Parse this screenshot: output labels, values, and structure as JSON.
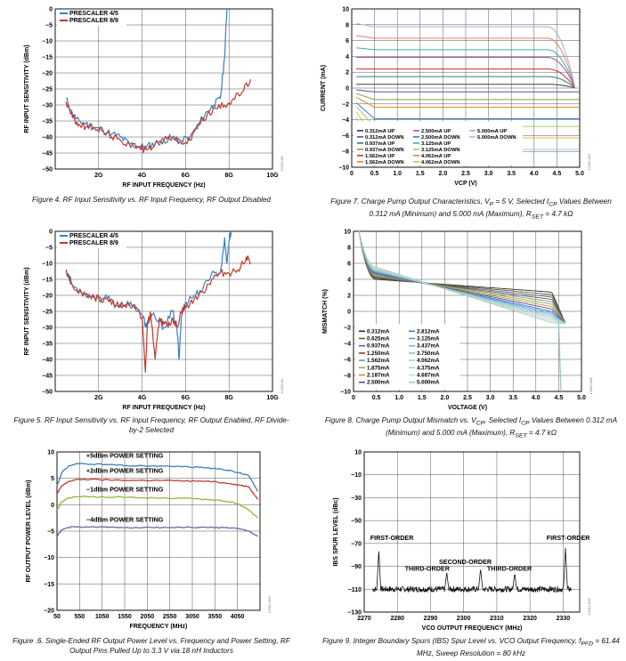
{
  "chart_data": [
    {
      "id": "fig4",
      "type": "line",
      "title": "",
      "caption": "Figure 4. RF Input Sensitivity vs. RF Input Frequency, RF Output Disabled",
      "xlabel": "RF INPUT FREQUENCY (Hz)",
      "ylabel": "RF INPUT SENSITIVITY (dBm)",
      "figure_id": "12282-08",
      "xlim": [
        0,
        10
      ],
      "ylim": [
        -50,
        0
      ],
      "x_ticks": [
        {
          "v": 2,
          "label": "2G"
        },
        {
          "v": 4,
          "label": "4G"
        },
        {
          "v": 6,
          "label": "6G"
        },
        {
          "v": 8,
          "label": "8G"
        },
        {
          "v": 10,
          "label": "10G"
        }
      ],
      "y_ticks": [
        -50,
        -45,
        -40,
        -35,
        -30,
        -25,
        -20,
        -15,
        -10,
        -5,
        0
      ],
      "grid": true,
      "legend": "top-left",
      "series": [
        {
          "name": "PRESCALER 4/5",
          "color": "#3a7fc1",
          "x": [
            0.5,
            0.8,
            1.1,
            1.4,
            1.8,
            2.2,
            2.6,
            3.0,
            3.4,
            3.8,
            4.2,
            4.6,
            5.0,
            5.4,
            5.8,
            6.2,
            6.6,
            7.0,
            7.3,
            7.6,
            7.8,
            7.9
          ],
          "y": [
            -28,
            -33,
            -35,
            -36,
            -37,
            -38,
            -39,
            -40,
            -42,
            -43,
            -43,
            -42,
            -41,
            -40,
            -41,
            -40,
            -36,
            -32,
            -30,
            -28,
            -15,
            0
          ]
        },
        {
          "name": "PRESCALER 8/9",
          "color": "#c0392b",
          "x": [
            0.5,
            0.8,
            1.1,
            1.4,
            1.8,
            2.2,
            2.6,
            3.0,
            3.4,
            3.8,
            4.2,
            4.6,
            5.0,
            5.4,
            5.8,
            6.2,
            6.6,
            7.0,
            7.4,
            7.8,
            8.2,
            8.6,
            9.0
          ],
          "y": [
            -29,
            -34,
            -36,
            -37,
            -37,
            -38,
            -40,
            -41,
            -42,
            -43,
            -44,
            -42,
            -41,
            -40,
            -42,
            -41,
            -36,
            -33,
            -31,
            -30,
            -28,
            -26,
            -22
          ]
        }
      ]
    },
    {
      "id": "fig5",
      "type": "line",
      "title": "",
      "caption": "Figure 5. RF Input Sensitivity vs. RF Input Frequency, RF Output Enabled, RF Divide-by-2 Selected",
      "xlabel": "RF INPUT FREQUENCY (Hz)",
      "ylabel": "RF INPUT SENSITIVITY (dBm)",
      "figure_id": "12282-00",
      "xlim": [
        0,
        10
      ],
      "ylim": [
        -50,
        0
      ],
      "x_ticks": [
        {
          "v": 2,
          "label": "2G"
        },
        {
          "v": 4,
          "label": "4G"
        },
        {
          "v": 6,
          "label": "6G"
        },
        {
          "v": 8,
          "label": "8G"
        },
        {
          "v": 10,
          "label": "10G"
        }
      ],
      "y_ticks": [
        -50,
        -45,
        -40,
        -35,
        -30,
        -25,
        -20,
        -15,
        -10,
        -5,
        0
      ],
      "grid": true,
      "legend": "top-left",
      "series": [
        {
          "name": "PRESCALER 4/5",
          "color": "#3a7fc1",
          "x": [
            0.5,
            0.8,
            1.2,
            1.6,
            2.0,
            2.4,
            2.8,
            3.2,
            3.6,
            4.0,
            4.2,
            4.4,
            4.6,
            5.0,
            5.4,
            5.6,
            5.7,
            5.8,
            6.0,
            6.4,
            6.8,
            7.2,
            7.6,
            7.8,
            7.9,
            8.0,
            8.1
          ],
          "y": [
            -12,
            -17,
            -19,
            -20,
            -21,
            -21,
            -23,
            -23,
            -23,
            -26,
            -30,
            -26,
            -27,
            -30,
            -25,
            -30,
            -40,
            -27,
            -22,
            -20,
            -18,
            -13,
            -13,
            -2,
            -10,
            -3,
            0
          ]
        },
        {
          "name": "PRESCALER 8/9",
          "color": "#c0392b",
          "x": [
            0.5,
            0.8,
            1.2,
            1.6,
            2.0,
            2.4,
            2.8,
            3.2,
            3.6,
            4.0,
            4.15,
            4.25,
            4.4,
            4.6,
            4.8,
            5.0,
            5.2,
            5.4,
            5.6,
            5.8,
            6.0,
            6.4,
            6.8,
            7.2,
            7.6,
            8.0,
            8.4,
            8.8,
            9.0
          ],
          "y": [
            -12,
            -17,
            -19,
            -20,
            -21,
            -21,
            -23,
            -23,
            -23,
            -27,
            -44,
            -28,
            -26,
            -40,
            -27,
            -29,
            -30,
            -27,
            -30,
            -25,
            -24,
            -21,
            -19,
            -15,
            -13,
            -13,
            -12,
            -8,
            -10
          ]
        }
      ]
    },
    {
      "id": "fig6",
      "type": "line",
      "title": "",
      "caption": "Figure .6. Single-Ended RF Output Power Level vs. Frequency and Power Setting, RF Output Pins Pulled Up to 3.3 V via 18 nH Inductors",
      "xlabel": "FREQUENCY (MHz)",
      "ylabel": "RF OUTPUT POWER LEVEL (dBm)",
      "figure_id": "12282-006",
      "xlim": [
        50,
        4550
      ],
      "ylim": [
        -20,
        10
      ],
      "x_ticks": [
        {
          "v": 50,
          "label": "50"
        },
        {
          "v": 550,
          "label": "550"
        },
        {
          "v": 1050,
          "label": "1050"
        },
        {
          "v": 1550,
          "label": "1550"
        },
        {
          "v": 2050,
          "label": "2050"
        },
        {
          "v": 2550,
          "label": "2550"
        },
        {
          "v": 3050,
          "label": "3050"
        },
        {
          "v": 3550,
          "label": "3550"
        },
        {
          "v": 4050,
          "label": "4050"
        }
      ],
      "y_ticks": [
        -20,
        -15,
        -10,
        -5,
        0,
        5,
        10
      ],
      "grid": true,
      "annotations": [
        "+5dBm POWER SETTING",
        "+2dBm POWER SETTING",
        "−1dBm POWER SETTING",
        "−4dBm POWER SETTING"
      ],
      "series": [
        {
          "name": "+5dBm POWER SETTING",
          "color": "#3a7fc1",
          "x": [
            50,
            150,
            300,
            500,
            800,
            1200,
            1600,
            2000,
            2400,
            2800,
            3200,
            3600,
            3900,
            4100,
            4300,
            4500
          ],
          "y": [
            3.5,
            6.0,
            7.3,
            7.8,
            7.7,
            7.6,
            7.4,
            7.3,
            7.3,
            7.2,
            7.1,
            6.8,
            6.5,
            6.0,
            5.5,
            2.5
          ]
        },
        {
          "name": "+2dBm POWER SETTING",
          "color": "#c0392b",
          "x": [
            50,
            150,
            300,
            500,
            800,
            1200,
            1600,
            2000,
            2400,
            2800,
            3200,
            3600,
            3900,
            4100,
            4300,
            4500
          ],
          "y": [
            2.0,
            3.5,
            4.4,
            4.8,
            4.8,
            4.7,
            4.6,
            4.6,
            4.6,
            4.5,
            4.5,
            4.3,
            4.0,
            3.7,
            3.4,
            1.0
          ]
        },
        {
          "name": "−1dBm POWER SETTING",
          "color": "#8db83f",
          "x": [
            50,
            150,
            300,
            500,
            800,
            1200,
            1600,
            2000,
            2400,
            2800,
            3200,
            3600,
            3900,
            4100,
            4300,
            4500
          ],
          "y": [
            -1.0,
            0.5,
            1.3,
            1.5,
            1.5,
            1.4,
            1.4,
            1.3,
            1.3,
            1.2,
            1.1,
            0.9,
            0.5,
            0.0,
            -1.0,
            -2.5
          ]
        },
        {
          "name": "−4dBm POWER SETTING",
          "color": "#7b5ea7",
          "x": [
            50,
            150,
            300,
            500,
            800,
            1200,
            1600,
            2000,
            2400,
            2800,
            3200,
            3600,
            3900,
            4100,
            4300,
            4500
          ],
          "y": [
            -6.0,
            -4.8,
            -4.3,
            -4.2,
            -4.2,
            -4.3,
            -4.3,
            -4.3,
            -4.3,
            -4.3,
            -4.3,
            -4.3,
            -4.4,
            -4.6,
            -5.0,
            -6.0
          ]
        }
      ]
    },
    {
      "id": "fig7",
      "type": "line",
      "title": "",
      "caption": "Figure 7. Charge Pump Output Characteristics, VP = 5 V, Selected ICP Values Between 0.312 mA (Minimum) and 5.000 mA (Maximum), RSET = 4.7 kΩ",
      "xlabel": "VCP (V)",
      "ylabel": "CURRENT (mA)",
      "figure_id": "12282-007",
      "xlim": [
        0,
        5
      ],
      "ylim": [
        -10,
        10
      ],
      "x_ticks": [
        {
          "v": 0,
          "label": "0"
        },
        {
          "v": 0.5,
          "label": "0.5"
        },
        {
          "v": 1,
          "label": "1.0"
        },
        {
          "v": 1.5,
          "label": "1.5"
        },
        {
          "v": 2,
          "label": "2.0"
        },
        {
          "v": 2.5,
          "label": "2.5"
        },
        {
          "v": 3,
          "label": "3.0"
        },
        {
          "v": 3.5,
          "label": "3.5"
        },
        {
          "v": 4,
          "label": "4.0"
        },
        {
          "v": 4.5,
          "label": "4.5"
        },
        {
          "v": 5,
          "label": "5.0"
        }
      ],
      "y_ticks": [
        -10,
        -8,
        -6,
        -4,
        -2,
        0,
        2,
        4,
        6,
        8,
        10
      ],
      "grid": true,
      "legend": "bottom-left",
      "currents": [
        0.312,
        0.937,
        1.562,
        2.5,
        3.125,
        4.062,
        5.0
      ],
      "legend_entries": [
        "0.312mA UP",
        "0.312mA DOWN",
        "0.937mA UP",
        "0.937mA DOWN",
        "1.562mA UP",
        "1.562mA DOWN",
        "2.500mA UP",
        "2.500mA DOWN",
        "3.125mA UP",
        "3.125mA DOWN",
        "4.062mA UP",
        "4.062mA DOWN",
        "5.000mA UP",
        "5.000mA DOWN"
      ],
      "legend_colors": [
        "#3d3d3d",
        "#5b4fa0",
        "#2f7d7d",
        "#7fa23a",
        "#c0392b",
        "#d98c2b",
        "#9b5aa8",
        "#3a7fc1",
        "#4aa6a6",
        "#a8c96a",
        "#e07f6e",
        "#e8b64e",
        "#b9a2d6",
        "#9cc3e6"
      ]
    },
    {
      "id": "fig8",
      "type": "line",
      "title": "",
      "caption": "Figure 8. Charge Pump Output Mismatch vs. VCP, Selected ICP Values Between 0.312 mA (Minimum) and 5.000 mA (Maximum), RSET = 4.7 kΩ",
      "xlabel": "VOLTAGE (V)",
      "ylabel": "MISMATCH (%)",
      "figure_id": "12282-008",
      "xlim": [
        0,
        5
      ],
      "ylim": [
        -10,
        10
      ],
      "x_ticks": [
        {
          "v": 0,
          "label": "0"
        },
        {
          "v": 0.5,
          "label": "0.5"
        },
        {
          "v": 1,
          "label": "1.0"
        },
        {
          "v": 1.5,
          "label": "1.5"
        },
        {
          "v": 2,
          "label": "2.0"
        },
        {
          "v": 2.5,
          "label": "2.5"
        },
        {
          "v": 3,
          "label": "3.0"
        },
        {
          "v": 3.5,
          "label": "3.5"
        },
        {
          "v": 4,
          "label": "4.0"
        },
        {
          "v": 4.5,
          "label": "4.5"
        },
        {
          "v": 5,
          "label": "5.0"
        }
      ],
      "y_ticks": [
        -10,
        -8,
        -6,
        -4,
        -2,
        0,
        2,
        4,
        6,
        8,
        10
      ],
      "grid": true,
      "legend": "bottom-left",
      "legend_entries": [
        "0.312mA",
        "0.625mA",
        "0.937mA",
        "1.250mA",
        "1.562mA",
        "1.875mA",
        "2.187mA",
        "2.500mA",
        "2.812mA",
        "3.125mA",
        "3.437mA",
        "3.750mA",
        "4.062mA",
        "4.375mA",
        "4.687mA",
        "5.000mA"
      ],
      "legend_colors": [
        "#2b2b2b",
        "#6b5a2b",
        "#3d6e9c",
        "#a0392b",
        "#5aa0a0",
        "#8fb04a",
        "#d98c2b",
        "#4d4d9c",
        "#3a7fc1",
        "#5b9bd5",
        "#7eb3d9",
        "#8fc3c9",
        "#a8cfd6",
        "#b6d6c6",
        "#c6ddd2",
        "#9ec7b9"
      ],
      "start_values": [
        4.0,
        4.1,
        4.2,
        4.3,
        4.4,
        4.5,
        4.6,
        4.7,
        4.8,
        4.9,
        5.0,
        5.1,
        5.2,
        5.3,
        5.4,
        5.5
      ],
      "end_values": [
        2.4,
        2.1,
        1.8,
        1.5,
        1.2,
        0.9,
        0.6,
        0.3,
        0.0,
        -0.2,
        -0.4,
        -0.6,
        -0.8,
        -1.0,
        -1.2,
        -1.4
      ]
    },
    {
      "id": "fig9",
      "type": "line",
      "title": "",
      "caption": "Figure 9. Integer Boundary Spurs (IBS) Spur Level vs. VCO Output Frequency, fPFD = 61.44 MHz, Sweep Resolution = 80 kHz",
      "xlabel": "VCO OUTPUT FREQUENCY (MHz)",
      "ylabel": "IBS SPUR LEVEL (dBc)",
      "figure_id": "12282-009",
      "xlim": [
        2270,
        2335
      ],
      "ylim": [
        -130,
        10
      ],
      "x_ticks": [
        {
          "v": 2270,
          "label": "2270"
        },
        {
          "v": 2280,
          "label": "2280"
        },
        {
          "v": 2290,
          "label": "2290"
        },
        {
          "v": 2300,
          "label": "2300"
        },
        {
          "v": 2310,
          "label": "2310"
        },
        {
          "v": 2320,
          "label": "2320"
        },
        {
          "v": 2330,
          "label": "2330"
        }
      ],
      "y_ticks": [
        -130,
        -110,
        -90,
        -70,
        -50,
        -30,
        -10,
        10
      ],
      "grid": true,
      "annotations": [
        "FIRST-ORDER",
        "SECOND-ORDER",
        "THIRD-ORDER",
        "THIRD-ORDER",
        "FIRST-ORDER"
      ],
      "baseline": -110,
      "spurs": [
        {
          "x": 2274.4,
          "y": -76
        },
        {
          "x": 2294.9,
          "y": -95
        },
        {
          "x": 2305.1,
          "y": -92
        },
        {
          "x": 2315.4,
          "y": -96
        },
        {
          "x": 2330.7,
          "y": -74
        }
      ]
    }
  ]
}
